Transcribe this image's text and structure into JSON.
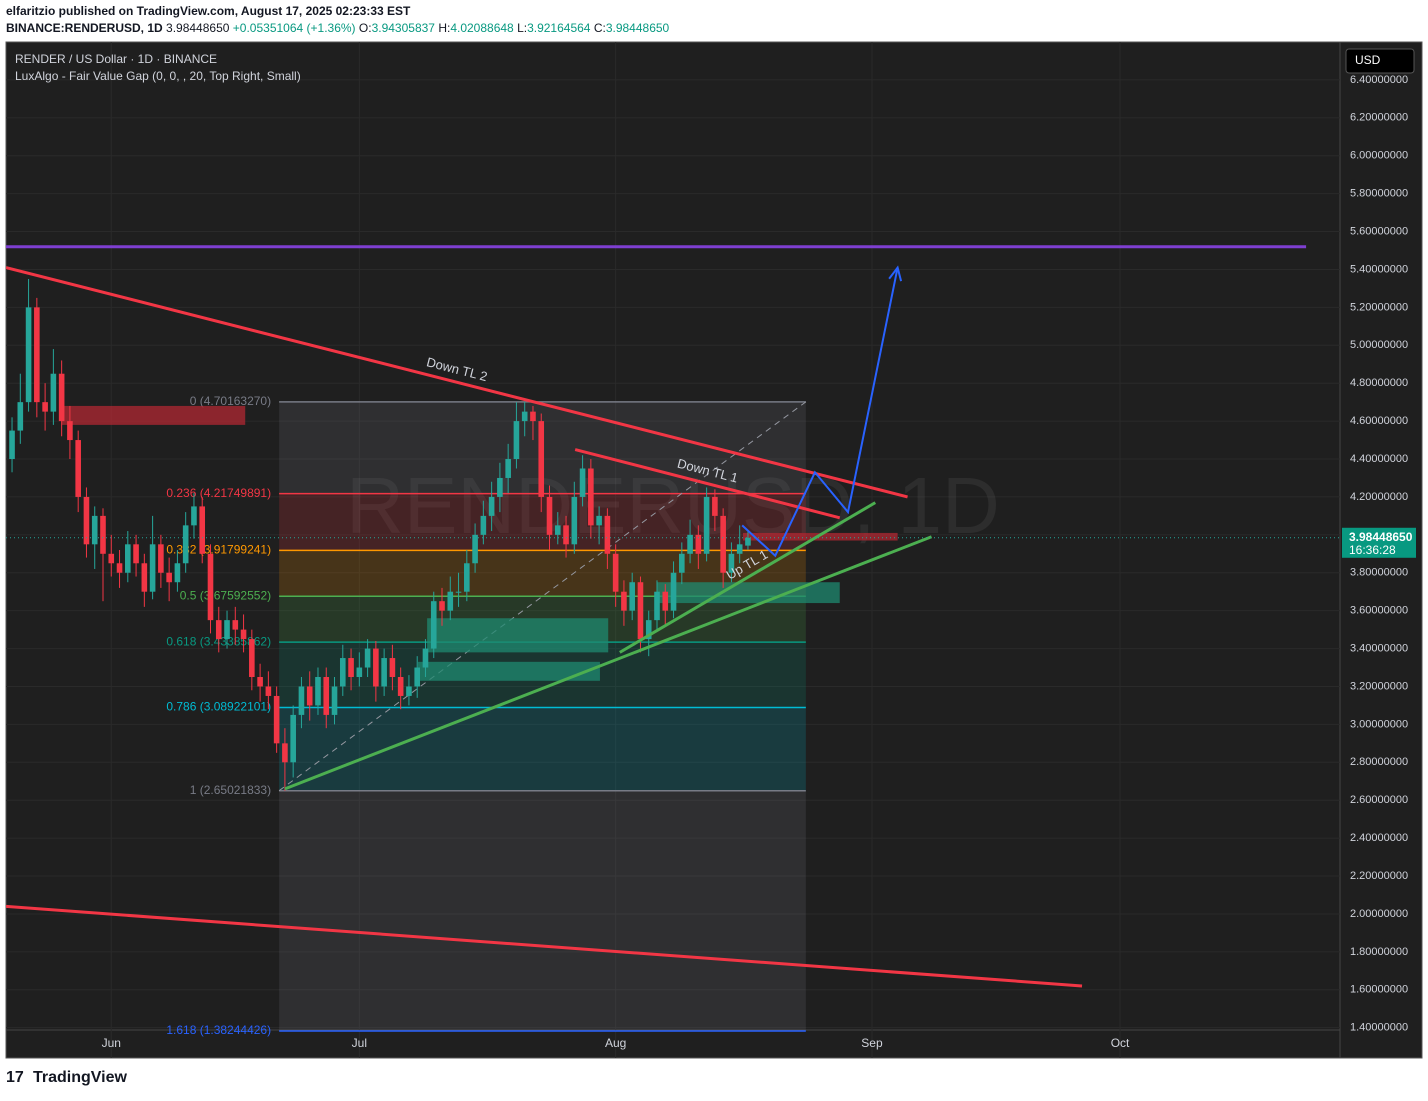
{
  "header": {
    "published": "elfaritzio published on TradingView.com, August 17, 2025 02:23:33 EST",
    "symbol": "BINANCE:RENDERUSD, 1D",
    "price": "3.98448650",
    "change": "+0.05351064 (+1.36%)",
    "o_label": "O:",
    "o": "3.94305837",
    "h_label": "H:",
    "h": "4.02088648",
    "l_label": "L:",
    "l": "3.92164564",
    "c_label": "C:",
    "c": "3.98448650"
  },
  "legend": {
    "line1": "RENDER / US Dollar · 1D · BINANCE",
    "line2": "LuxAlgo - Fair Value Gap (0, 0, , 20, Top Right, Small)"
  },
  "currency": "USD",
  "watermark": "RENDERUSD, 1D",
  "footer": "TradingView",
  "chart_data": {
    "type": "candlestick",
    "open": [
      4.4,
      4.55,
      4.7,
      5.2,
      4.7,
      4.65,
      4.85,
      4.6,
      4.5,
      4.2,
      3.95,
      4.1,
      3.9,
      3.85,
      3.8,
      3.95,
      3.85,
      3.7,
      3.95,
      3.8,
      3.75,
      3.85,
      4.05,
      4.15,
      3.9,
      3.55,
      3.45,
      3.55,
      3.5,
      3.45,
      3.25,
      3.2,
      3.15,
      2.9,
      2.8,
      3.05,
      3.2,
      3.1,
      3.25,
      3.05,
      3.2,
      3.35,
      3.25,
      3.3,
      3.4,
      3.2,
      3.35,
      3.25,
      3.15,
      3.2,
      3.3,
      3.4,
      3.65,
      3.6,
      3.7,
      3.7,
      3.85,
      4.0,
      4.1,
      4.2,
      4.3,
      4.4,
      4.6,
      4.65,
      4.6,
      4.2,
      4.0,
      4.05,
      3.95,
      4.2,
      4.35,
      4.05,
      4.1,
      3.9,
      3.7,
      3.6,
      3.75,
      3.45,
      3.55,
      3.7,
      3.6,
      3.8,
      3.9,
      4.0,
      3.9,
      4.2,
      4.1,
      3.8,
      3.9,
      3.94305837
    ],
    "high": [
      4.62,
      4.85,
      5.35,
      5.25,
      4.8,
      4.98,
      4.92,
      4.68,
      4.55,
      4.25,
      4.15,
      4.14,
      4.0,
      3.92,
      4.02,
      4.0,
      3.9,
      4.1,
      4.0,
      3.88,
      3.92,
      4.12,
      4.22,
      4.2,
      3.95,
      3.62,
      3.6,
      3.62,
      3.58,
      3.5,
      3.32,
      3.28,
      3.2,
      2.98,
      3.1,
      3.25,
      3.28,
      3.3,
      3.3,
      3.25,
      3.42,
      3.4,
      3.38,
      3.45,
      3.44,
      3.4,
      3.42,
      3.3,
      3.26,
      3.36,
      3.45,
      3.7,
      3.72,
      3.78,
      3.8,
      3.92,
      4.06,
      4.18,
      4.28,
      4.38,
      4.48,
      4.7,
      4.7,
      4.68,
      4.64,
      4.26,
      4.12,
      4.1,
      4.28,
      4.42,
      4.4,
      4.15,
      4.14,
      3.95,
      3.76,
      3.8,
      3.78,
      3.6,
      3.76,
      3.74,
      3.86,
      3.96,
      4.08,
      4.05,
      4.25,
      4.24,
      4.14,
      3.96,
      4.05,
      4.02088648
    ],
    "low": [
      4.33,
      4.48,
      4.65,
      4.62,
      4.55,
      4.58,
      4.52,
      4.4,
      4.12,
      3.88,
      3.82,
      3.65,
      3.78,
      3.72,
      3.75,
      3.78,
      3.62,
      3.66,
      3.72,
      3.65,
      3.7,
      3.8,
      3.98,
      3.85,
      3.48,
      3.38,
      3.4,
      3.42,
      3.38,
      3.18,
      3.12,
      3.08,
      2.85,
      2.65,
      2.72,
      2.98,
      3.02,
      3.05,
      2.98,
      3.0,
      3.15,
      3.18,
      3.2,
      3.25,
      3.12,
      3.15,
      3.18,
      3.08,
      3.1,
      3.14,
      3.25,
      3.35,
      3.52,
      3.55,
      3.62,
      3.65,
      3.8,
      3.95,
      4.02,
      4.12,
      4.22,
      4.35,
      4.52,
      4.5,
      4.12,
      3.92,
      3.95,
      3.88,
      3.9,
      4.15,
      3.98,
      3.95,
      3.82,
      3.62,
      3.52,
      3.55,
      3.38,
      3.36,
      3.5,
      3.52,
      3.56,
      3.74,
      3.85,
      3.82,
      3.86,
      4.02,
      3.72,
      3.75,
      3.85,
      3.92164564
    ],
    "close": [
      4.55,
      4.7,
      5.2,
      4.7,
      4.65,
      4.85,
      4.6,
      4.5,
      4.2,
      3.95,
      4.1,
      3.9,
      3.85,
      3.8,
      3.95,
      3.85,
      3.7,
      3.95,
      3.8,
      3.75,
      3.85,
      4.05,
      4.15,
      3.9,
      3.55,
      3.45,
      3.55,
      3.5,
      3.45,
      3.25,
      3.2,
      3.15,
      2.9,
      2.8,
      3.05,
      3.2,
      3.1,
      3.25,
      3.05,
      3.2,
      3.35,
      3.25,
      3.3,
      3.4,
      3.2,
      3.35,
      3.25,
      3.15,
      3.2,
      3.3,
      3.4,
      3.65,
      3.6,
      3.7,
      3.7,
      3.85,
      4.0,
      4.1,
      4.2,
      4.3,
      4.4,
      4.6,
      4.65,
      4.6,
      4.2,
      4.0,
      4.05,
      3.95,
      4.2,
      4.35,
      4.05,
      4.1,
      3.9,
      3.7,
      3.6,
      3.75,
      3.45,
      3.55,
      3.7,
      3.6,
      3.8,
      3.9,
      4.0,
      3.9,
      4.2,
      4.1,
      3.8,
      3.9,
      3.95,
      3.9844865
    ],
    "up_color": "#26a69a",
    "down_color": "#f23645",
    "xlim": [
      -0.73,
      160.6
    ],
    "xticks": [
      {
        "value": 12,
        "label": "Jun"
      },
      {
        "value": 42,
        "label": "Jul"
      },
      {
        "value": 73,
        "label": "Aug"
      },
      {
        "value": 104,
        "label": "Sep"
      },
      {
        "value": 134,
        "label": "Oct"
      }
    ],
    "ylim": [
      1.24,
      6.6
    ],
    "yticks": [
      {
        "value": 1.4,
        "label": "1.40000000"
      },
      {
        "value": 1.6,
        "label": "1.60000000"
      },
      {
        "value": 1.8,
        "label": "1.80000000"
      },
      {
        "value": 2,
        "label": "2.00000000"
      },
      {
        "value": 2.2,
        "label": "2.20000000"
      },
      {
        "value": 2.4,
        "label": "2.40000000"
      },
      {
        "value": 2.6,
        "label": "2.60000000"
      },
      {
        "value": 2.8,
        "label": "2.80000000"
      },
      {
        "value": 3,
        "label": "3.00000000"
      },
      {
        "value": 3.2,
        "label": "3.20000000"
      },
      {
        "value": 3.4,
        "label": "3.40000000"
      },
      {
        "value": 3.6,
        "label": "3.60000000"
      },
      {
        "value": 3.8,
        "label": "3.80000000"
      },
      {
        "value": 4,
        "label": "4.00000000"
      },
      {
        "value": 4.2,
        "label": "4.20000000"
      },
      {
        "value": 4.4,
        "label": "4.40000000"
      },
      {
        "value": 4.6,
        "label": "4.60000000"
      },
      {
        "value": 4.8,
        "label": "4.80000000"
      },
      {
        "value": 5,
        "label": "5.00000000"
      },
      {
        "value": 5.2,
        "label": "5.20000000"
      },
      {
        "value": 5.4,
        "label": "5.40000000"
      },
      {
        "value": 5.6,
        "label": "5.60000000"
      },
      {
        "value": 5.8,
        "label": "5.80000000"
      },
      {
        "value": 6,
        "label": "6.00000000"
      },
      {
        "value": 6.2,
        "label": "6.20000000"
      },
      {
        "value": 6.4,
        "label": "6.40000000"
      }
    ],
    "grid": true,
    "last_price": {
      "value": 3.9844865,
      "label": "3.98448650"
    },
    "countdown": "16:36:28",
    "fib": {
      "x": [
        32.3,
        96
      ],
      "levels": [
        {
          "value": 4.7016327,
          "label": "0 (4.70163270)",
          "color": "#787b86"
        },
        {
          "value": 4.21749891,
          "label": "0.236 (4.21749891)",
          "color": "#f23645"
        },
        {
          "value": 3.91799241,
          "label": "0.382 (3.91799241)",
          "color": "#ff9800"
        },
        {
          "value": 3.67592552,
          "label": "0.5 (3.67592552)",
          "color": "#4caf50"
        },
        {
          "value": 3.43385862,
          "label": "0.618 (3.43385862)",
          "color": "#089981"
        },
        {
          "value": 3.08922101,
          "label": "0.786 (3.08922101)",
          "color": "#00bcd4"
        },
        {
          "value": 2.65021833,
          "label": "1 (2.65021833)",
          "color": "#787b86"
        },
        {
          "value": 1.38244426,
          "label": "1.618 (1.38244426)",
          "color": "#2962ff"
        }
      ]
    },
    "boxes": [
      {
        "x": [
          6.0,
          28.2
        ],
        "y": [
          4.58,
          4.68
        ],
        "color": "#b22833"
      },
      {
        "x": [
          50.2,
          72.1
        ],
        "y": [
          3.38,
          3.56
        ],
        "color": "#1f8a70"
      },
      {
        "x": [
          49.1,
          71.1
        ],
        "y": [
          3.23,
          3.33
        ],
        "color": "#1f8a70"
      },
      {
        "x": [
          78,
          100.1
        ],
        "y": [
          3.64,
          3.75
        ],
        "color": "#1f8a70"
      },
      {
        "x": [
          88.4,
          107.1
        ],
        "y": [
          3.97,
          4.01
        ],
        "color": "#b22833"
      }
    ],
    "drawings": [
      {
        "x": [
          -0.73,
          156.5
        ],
        "y": [
          5.52,
          5.52
        ],
        "color": "#7e3fd1"
      },
      {
        "x": [
          -0.73,
          129.4
        ],
        "y": [
          2.04,
          1.62
        ],
        "color": "#f23645"
      },
      {
        "x": [
          -0.73,
          108.3
        ],
        "y": [
          5.41,
          4.2
        ],
        "color": "#f23645",
        "label": "Down TL 2"
      },
      {
        "x": [
          68.1,
          100.1
        ],
        "y": [
          4.45,
          4.09
        ],
        "color": "#f23645",
        "label": "Down TL 1"
      },
      {
        "x": [
          73.5,
          104.4
        ],
        "y": [
          3.38,
          4.17
        ],
        "color": "#4caf50",
        "label": "Up TL 1"
      },
      {
        "x": [
          33,
          111.2
        ],
        "y": [
          2.66,
          3.99
        ],
        "color": "#4caf50"
      },
      {
        "x": [
          88.3,
          92.3,
          97.1,
          101.1,
          107.1
        ],
        "y": [
          4.05,
          3.89,
          4.33,
          4.12,
          5.41
        ],
        "color": "#2962ff",
        "arrow": true
      }
    ]
  }
}
